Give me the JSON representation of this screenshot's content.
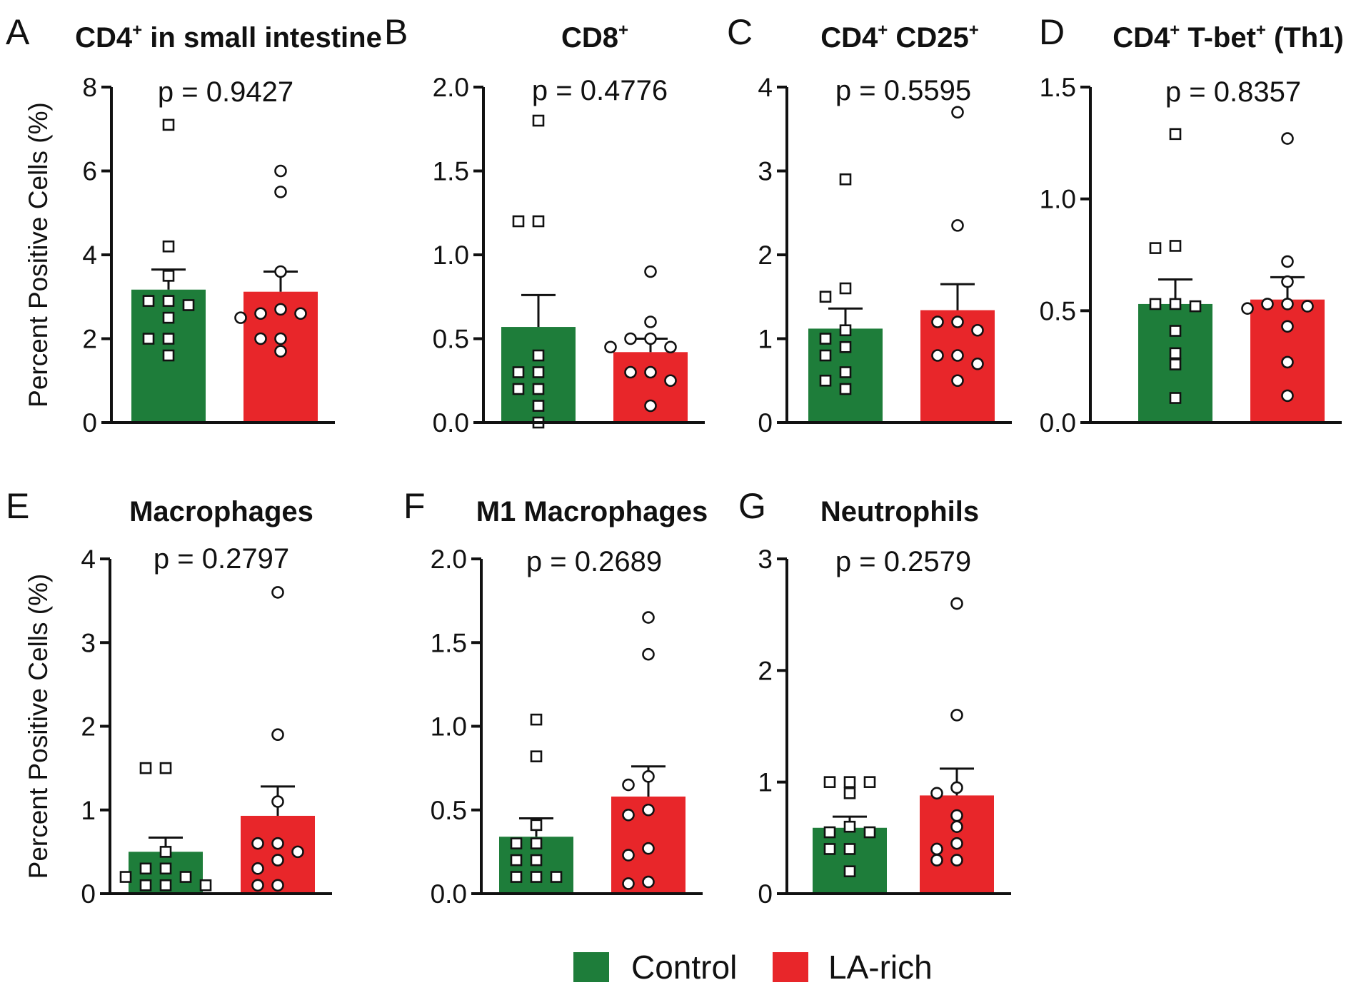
{
  "figure": {
    "ylabel": "Percent Positive Cells (%)",
    "legend": [
      {
        "label": "Control",
        "color": "#1e7d3a"
      },
      {
        "label": "LA-rich",
        "color": "#e8262a"
      }
    ]
  },
  "chart_data": [
    {
      "letter": "A",
      "type": "bar",
      "title_parts": [
        {
          "text": "CD4"
        },
        {
          "text": "+",
          "sup": true
        },
        {
          "text": " in small intestine"
        }
      ],
      "pvalue": "p = 0.9427",
      "ylim": [
        0,
        8
      ],
      "ticks": [
        "0",
        "2",
        "4",
        "6",
        "8"
      ],
      "ylabel": "Percent Positive Cells (%)",
      "groups": [
        {
          "name": "Control",
          "color": "#1e7d3a",
          "marker": "square",
          "mean": 3.17,
          "sem": 0.48,
          "points": [
            7.1,
            4.2,
            3.5,
            2.9,
            2.9,
            2.8,
            2.5,
            2.0,
            2.0,
            1.6
          ]
        },
        {
          "name": "LA-rich",
          "color": "#e8262a",
          "marker": "circle",
          "mean": 3.12,
          "sem": 0.48,
          "points": [
            6.0,
            5.5,
            3.6,
            2.7,
            2.6,
            2.6,
            2.5,
            2.0,
            2.0,
            1.7
          ]
        }
      ]
    },
    {
      "letter": "B",
      "type": "bar",
      "title_parts": [
        {
          "text": "CD8"
        },
        {
          "text": "+",
          "sup": true
        }
      ],
      "pvalue": "p = 0.4776",
      "ylim": [
        0,
        2
      ],
      "ticks": [
        "0.0",
        "0.5",
        "1.0",
        "1.5",
        "2.0"
      ],
      "ylabel": "",
      "groups": [
        {
          "name": "Control",
          "color": "#1e7d3a",
          "marker": "square",
          "mean": 0.57,
          "sem": 0.19,
          "points": [
            1.8,
            1.2,
            1.2,
            0.4,
            0.3,
            0.3,
            0.2,
            0.2,
            0.1,
            0.0
          ]
        },
        {
          "name": "LA-rich",
          "color": "#e8262a",
          "marker": "circle",
          "mean": 0.42,
          "sem": 0.08,
          "points": [
            0.9,
            0.6,
            0.5,
            0.5,
            0.45,
            0.45,
            0.3,
            0.3,
            0.25,
            0.1
          ]
        }
      ]
    },
    {
      "letter": "C",
      "type": "bar",
      "title_parts": [
        {
          "text": "CD4"
        },
        {
          "text": "+",
          "sup": true
        },
        {
          "text": " CD25"
        },
        {
          "text": "+",
          "sup": true
        }
      ],
      "pvalue": "p = 0.5595",
      "ylim": [
        0,
        4
      ],
      "ticks": [
        "0",
        "1",
        "2",
        "3",
        "4"
      ],
      "ylabel": "",
      "groups": [
        {
          "name": "Control",
          "color": "#1e7d3a",
          "marker": "square",
          "mean": 1.12,
          "sem": 0.24,
          "points": [
            2.9,
            1.6,
            1.5,
            1.1,
            1.0,
            0.9,
            0.8,
            0.6,
            0.5,
            0.4
          ]
        },
        {
          "name": "LA-rich",
          "color": "#e8262a",
          "marker": "circle",
          "mean": 1.34,
          "sem": 0.31,
          "points": [
            3.7,
            2.35,
            1.2,
            1.2,
            1.1,
            0.8,
            0.8,
            0.7,
            0.5
          ]
        }
      ]
    },
    {
      "letter": "D",
      "type": "bar",
      "title_parts": [
        {
          "text": "CD4"
        },
        {
          "text": "+",
          "sup": true
        },
        {
          "text": " T-bet"
        },
        {
          "text": "+",
          "sup": true
        },
        {
          "text": " (Th1)"
        }
      ],
      "pvalue": "p = 0.8357",
      "ylim": [
        0,
        1.5
      ],
      "ticks": [
        "0.0",
        "0.5",
        "1.0",
        "1.5"
      ],
      "ylabel": "",
      "groups": [
        {
          "name": "Control",
          "color": "#1e7d3a",
          "marker": "square",
          "mean": 0.53,
          "sem": 0.11,
          "points": [
            1.29,
            0.79,
            0.78,
            0.53,
            0.53,
            0.52,
            0.41,
            0.31,
            0.26,
            0.11
          ]
        },
        {
          "name": "LA-rich",
          "color": "#e8262a",
          "marker": "circle",
          "mean": 0.55,
          "sem": 0.1,
          "points": [
            1.27,
            0.72,
            0.63,
            0.53,
            0.53,
            0.52,
            0.51,
            0.43,
            0.27,
            0.12
          ]
        }
      ]
    },
    {
      "letter": "E",
      "type": "bar",
      "title_parts": [
        {
          "text": "Macrophages"
        }
      ],
      "pvalue": "p = 0.2797",
      "ylim": [
        0,
        4
      ],
      "ticks": [
        "0",
        "1",
        "2",
        "3",
        "4"
      ],
      "ylabel": "Percent Positive Cells (%)",
      "groups": [
        {
          "name": "Control",
          "color": "#1e7d3a",
          "marker": "square",
          "mean": 0.5,
          "sem": 0.17,
          "points": [
            1.5,
            1.5,
            0.5,
            0.3,
            0.3,
            0.2,
            0.2,
            0.1,
            0.1,
            0.1
          ]
        },
        {
          "name": "LA-rich",
          "color": "#e8262a",
          "marker": "circle",
          "mean": 0.93,
          "sem": 0.35,
          "points": [
            3.6,
            1.9,
            1.1,
            0.6,
            0.6,
            0.5,
            0.4,
            0.3,
            0.1,
            0.1
          ]
        }
      ]
    },
    {
      "letter": "F",
      "type": "bar",
      "title_parts": [
        {
          "text": "M1 Macrophages"
        }
      ],
      "pvalue": "p = 0.2689",
      "ylim": [
        0,
        2
      ],
      "ticks": [
        "0.0",
        "0.5",
        "1.0",
        "1.5",
        "2.0"
      ],
      "ylabel": "",
      "groups": [
        {
          "name": "Control",
          "color": "#1e7d3a",
          "marker": "square",
          "mean": 0.34,
          "sem": 0.11,
          "points": [
            1.04,
            0.82,
            0.41,
            0.3,
            0.3,
            0.2,
            0.2,
            0.1,
            0.1,
            0.1
          ]
        },
        {
          "name": "LA-rich",
          "color": "#e8262a",
          "marker": "circle",
          "mean": 0.58,
          "sem": 0.18,
          "points": [
            1.65,
            1.43,
            0.7,
            0.65,
            0.5,
            0.47,
            0.27,
            0.23,
            0.07,
            0.06
          ]
        }
      ]
    },
    {
      "letter": "G",
      "type": "bar",
      "title_parts": [
        {
          "text": "Neutrophils"
        }
      ],
      "pvalue": "p = 0.2579",
      "ylim": [
        0,
        3
      ],
      "ticks": [
        "0",
        "1",
        "2",
        "3"
      ],
      "ylabel": "",
      "groups": [
        {
          "name": "Control",
          "color": "#1e7d3a",
          "marker": "square",
          "mean": 0.59,
          "sem": 0.1,
          "points": [
            1.0,
            1.0,
            1.0,
            0.9,
            0.6,
            0.55,
            0.55,
            0.4,
            0.4,
            0.2
          ]
        },
        {
          "name": "LA-rich",
          "color": "#e8262a",
          "marker": "circle",
          "mean": 0.88,
          "sem": 0.24,
          "points": [
            2.6,
            1.6,
            0.95,
            0.9,
            0.7,
            0.6,
            0.45,
            0.4,
            0.3,
            0.3
          ]
        }
      ]
    }
  ]
}
